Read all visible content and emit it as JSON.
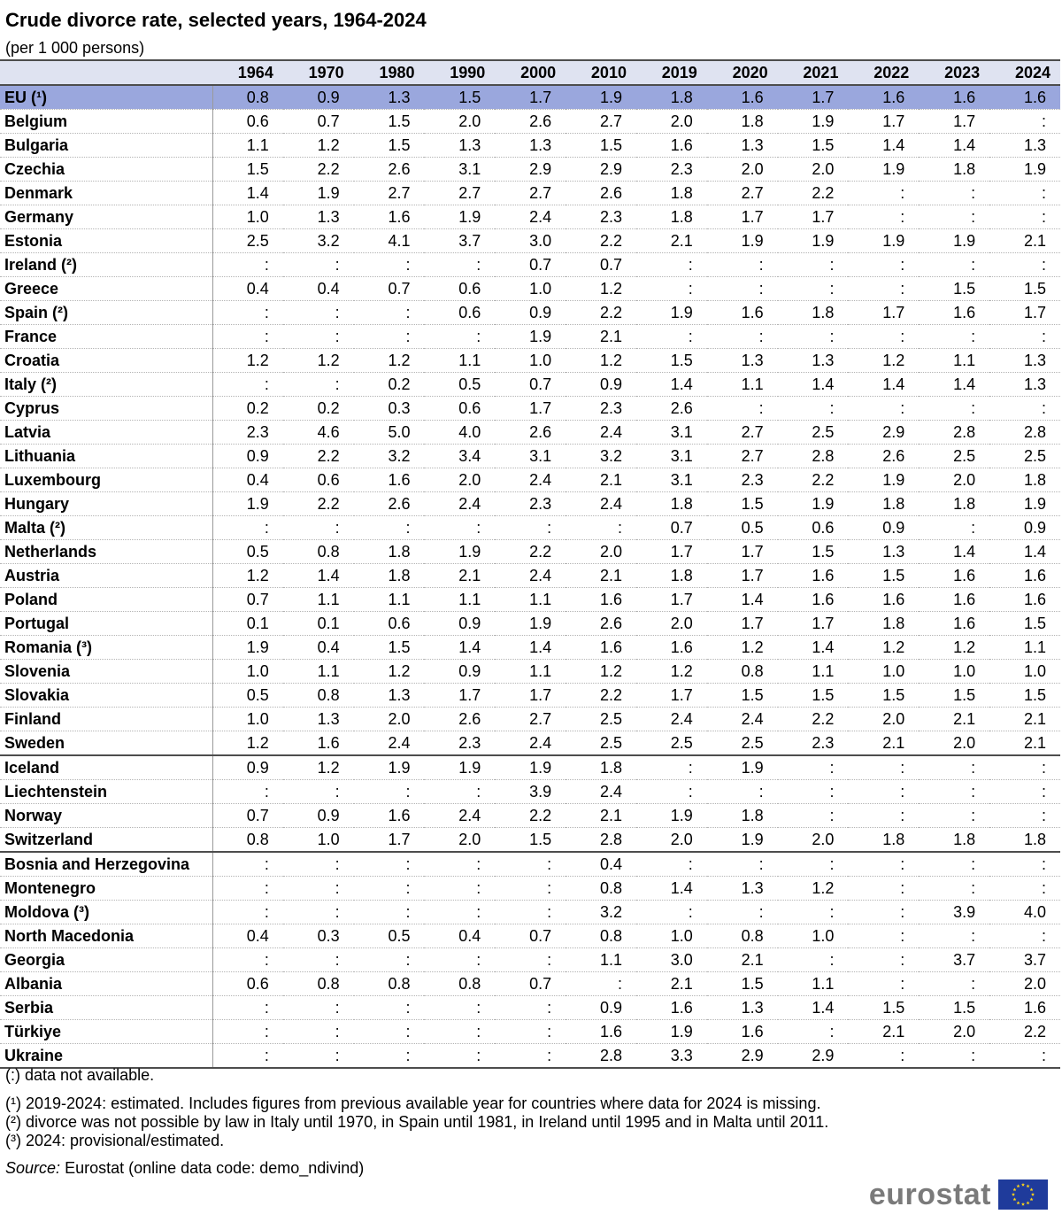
{
  "title": "Crude divorce rate, selected years, 1964-2024",
  "subtitle": "(per 1 000 persons)",
  "chart_data": {
    "type": "table",
    "title": "Crude divorce rate, selected years, 1964-2024",
    "subtitle": "(per 1 000 persons)",
    "columns": [
      "1964",
      "1970",
      "1980",
      "1990",
      "2000",
      "2010",
      "2019",
      "2020",
      "2021",
      "2022",
      "2023",
      "2024"
    ],
    "groups": [
      [
        {
          "name": "EU (¹)",
          "values": [
            "0.8",
            "0.9",
            "1.3",
            "1.5",
            "1.7",
            "1.9",
            "1.8",
            "1.6",
            "1.7",
            "1.6",
            "1.6",
            "1.6"
          ]
        }
      ],
      [
        {
          "name": "Belgium",
          "values": [
            "0.6",
            "0.7",
            "1.5",
            "2.0",
            "2.6",
            "2.7",
            "2.0",
            "1.8",
            "1.9",
            "1.7",
            "1.7",
            ":"
          ]
        },
        {
          "name": "Bulgaria",
          "values": [
            "1.1",
            "1.2",
            "1.5",
            "1.3",
            "1.3",
            "1.5",
            "1.6",
            "1.3",
            "1.5",
            "1.4",
            "1.4",
            "1.3"
          ]
        },
        {
          "name": "Czechia",
          "values": [
            "1.5",
            "2.2",
            "2.6",
            "3.1",
            "2.9",
            "2.9",
            "2.3",
            "2.0",
            "2.0",
            "1.9",
            "1.8",
            "1.9"
          ]
        },
        {
          "name": "Denmark",
          "values": [
            "1.4",
            "1.9",
            "2.7",
            "2.7",
            "2.7",
            "2.6",
            "1.8",
            "2.7",
            "2.2",
            ":",
            ":",
            ":"
          ]
        },
        {
          "name": "Germany",
          "values": [
            "1.0",
            "1.3",
            "1.6",
            "1.9",
            "2.4",
            "2.3",
            "1.8",
            "1.7",
            "1.7",
            ":",
            ":",
            ":"
          ]
        },
        {
          "name": "Estonia",
          "values": [
            "2.5",
            "3.2",
            "4.1",
            "3.7",
            "3.0",
            "2.2",
            "2.1",
            "1.9",
            "1.9",
            "1.9",
            "1.9",
            "2.1"
          ]
        },
        {
          "name": "Ireland (²)",
          "values": [
            ":",
            ":",
            ":",
            ":",
            "0.7",
            "0.7",
            ":",
            ":",
            ":",
            ":",
            ":",
            ":"
          ]
        },
        {
          "name": "Greece",
          "values": [
            "0.4",
            "0.4",
            "0.7",
            "0.6",
            "1.0",
            "1.2",
            ":",
            ":",
            ":",
            ":",
            "1.5",
            "1.5"
          ]
        },
        {
          "name": "Spain (²)",
          "values": [
            ":",
            ":",
            ":",
            "0.6",
            "0.9",
            "2.2",
            "1.9",
            "1.6",
            "1.8",
            "1.7",
            "1.6",
            "1.7"
          ]
        },
        {
          "name": "France",
          "values": [
            ":",
            ":",
            ":",
            ":",
            "1.9",
            "2.1",
            ":",
            ":",
            ":",
            ":",
            ":",
            ":"
          ]
        },
        {
          "name": "Croatia",
          "values": [
            "1.2",
            "1.2",
            "1.2",
            "1.1",
            "1.0",
            "1.2",
            "1.5",
            "1.3",
            "1.3",
            "1.2",
            "1.1",
            "1.3"
          ]
        },
        {
          "name": "Italy (²)",
          "values": [
            ":",
            ":",
            "0.2",
            "0.5",
            "0.7",
            "0.9",
            "1.4",
            "1.1",
            "1.4",
            "1.4",
            "1.4",
            "1.3"
          ]
        },
        {
          "name": "Cyprus",
          "values": [
            "0.2",
            "0.2",
            "0.3",
            "0.6",
            "1.7",
            "2.3",
            "2.6",
            ":",
            ":",
            ":",
            ":",
            ":"
          ]
        },
        {
          "name": "Latvia",
          "values": [
            "2.3",
            "4.6",
            "5.0",
            "4.0",
            "2.6",
            "2.4",
            "3.1",
            "2.7",
            "2.5",
            "2.9",
            "2.8",
            "2.8"
          ]
        },
        {
          "name": "Lithuania",
          "values": [
            "0.9",
            "2.2",
            "3.2",
            "3.4",
            "3.1",
            "3.2",
            "3.1",
            "2.7",
            "2.8",
            "2.6",
            "2.5",
            "2.5"
          ]
        },
        {
          "name": "Luxembourg",
          "values": [
            "0.4",
            "0.6",
            "1.6",
            "2.0",
            "2.4",
            "2.1",
            "3.1",
            "2.3",
            "2.2",
            "1.9",
            "2.0",
            "1.8"
          ]
        },
        {
          "name": "Hungary",
          "values": [
            "1.9",
            "2.2",
            "2.6",
            "2.4",
            "2.3",
            "2.4",
            "1.8",
            "1.5",
            "1.9",
            "1.8",
            "1.8",
            "1.9"
          ]
        },
        {
          "name": "Malta (²)",
          "values": [
            ":",
            ":",
            ":",
            ":",
            ":",
            ":",
            "0.7",
            "0.5",
            "0.6",
            "0.9",
            ":",
            "0.9"
          ]
        },
        {
          "name": "Netherlands",
          "values": [
            "0.5",
            "0.8",
            "1.8",
            "1.9",
            "2.2",
            "2.0",
            "1.7",
            "1.7",
            "1.5",
            "1.3",
            "1.4",
            "1.4"
          ]
        },
        {
          "name": "Austria",
          "values": [
            "1.2",
            "1.4",
            "1.8",
            "2.1",
            "2.4",
            "2.1",
            "1.8",
            "1.7",
            "1.6",
            "1.5",
            "1.6",
            "1.6"
          ]
        },
        {
          "name": "Poland",
          "values": [
            "0.7",
            "1.1",
            "1.1",
            "1.1",
            "1.1",
            "1.6",
            "1.7",
            "1.4",
            "1.6",
            "1.6",
            "1.6",
            "1.6"
          ]
        },
        {
          "name": "Portugal",
          "values": [
            "0.1",
            "0.1",
            "0.6",
            "0.9",
            "1.9",
            "2.6",
            "2.0",
            "1.7",
            "1.7",
            "1.8",
            "1.6",
            "1.5"
          ]
        },
        {
          "name": "Romania (³)",
          "values": [
            "1.9",
            "0.4",
            "1.5",
            "1.4",
            "1.4",
            "1.6",
            "1.6",
            "1.2",
            "1.4",
            "1.2",
            "1.2",
            "1.1"
          ]
        },
        {
          "name": "Slovenia",
          "values": [
            "1.0",
            "1.1",
            "1.2",
            "0.9",
            "1.1",
            "1.2",
            "1.2",
            "0.8",
            "1.1",
            "1.0",
            "1.0",
            "1.0"
          ]
        },
        {
          "name": "Slovakia",
          "values": [
            "0.5",
            "0.8",
            "1.3",
            "1.7",
            "1.7",
            "2.2",
            "1.7",
            "1.5",
            "1.5",
            "1.5",
            "1.5",
            "1.5"
          ]
        },
        {
          "name": "Finland",
          "values": [
            "1.0",
            "1.3",
            "2.0",
            "2.6",
            "2.7",
            "2.5",
            "2.4",
            "2.4",
            "2.2",
            "2.0",
            "2.1",
            "2.1"
          ]
        },
        {
          "name": "Sweden",
          "values": [
            "1.2",
            "1.6",
            "2.4",
            "2.3",
            "2.4",
            "2.5",
            "2.5",
            "2.5",
            "2.3",
            "2.1",
            "2.0",
            "2.1"
          ]
        }
      ],
      [
        {
          "name": "Iceland",
          "values": [
            "0.9",
            "1.2",
            "1.9",
            "1.9",
            "1.9",
            "1.8",
            ":",
            "1.9",
            ":",
            ":",
            ":",
            ":"
          ]
        },
        {
          "name": "Liechtenstein",
          "values": [
            ":",
            ":",
            ":",
            ":",
            "3.9",
            "2.4",
            ":",
            ":",
            ":",
            ":",
            ":",
            ":"
          ]
        },
        {
          "name": "Norway",
          "values": [
            "0.7",
            "0.9",
            "1.6",
            "2.4",
            "2.2",
            "2.1",
            "1.9",
            "1.8",
            ":",
            ":",
            ":",
            ":"
          ]
        },
        {
          "name": "Switzerland",
          "values": [
            "0.8",
            "1.0",
            "1.7",
            "2.0",
            "1.5",
            "2.8",
            "2.0",
            "1.9",
            "2.0",
            "1.8",
            "1.8",
            "1.8"
          ]
        }
      ],
      [
        {
          "name": "Bosnia and Herzegovina",
          "values": [
            ":",
            ":",
            ":",
            ":",
            ":",
            "0.4",
            ":",
            ":",
            ":",
            ":",
            ":",
            ":"
          ]
        },
        {
          "name": "Montenegro",
          "values": [
            ":",
            ":",
            ":",
            ":",
            ":",
            "0.8",
            "1.4",
            "1.3",
            "1.2",
            ":",
            ":",
            ":"
          ]
        },
        {
          "name": "Moldova (³)",
          "values": [
            ":",
            ":",
            ":",
            ":",
            ":",
            "3.2",
            ":",
            ":",
            ":",
            ":",
            "3.9",
            "4.0"
          ]
        },
        {
          "name": "North Macedonia",
          "values": [
            "0.4",
            "0.3",
            "0.5",
            "0.4",
            "0.7",
            "0.8",
            "1.0",
            "0.8",
            "1.0",
            ":",
            ":",
            ":"
          ]
        },
        {
          "name": "Georgia",
          "values": [
            ":",
            ":",
            ":",
            ":",
            ":",
            "1.1",
            "3.0",
            "2.1",
            ":",
            ":",
            "3.7",
            "3.7"
          ]
        },
        {
          "name": "Albania",
          "values": [
            "0.6",
            "0.8",
            "0.8",
            "0.8",
            "0.7",
            ":",
            "2.1",
            "1.5",
            "1.1",
            ":",
            ":",
            "2.0"
          ]
        },
        {
          "name": "Serbia",
          "values": [
            ":",
            ":",
            ":",
            ":",
            ":",
            "0.9",
            "1.6",
            "1.3",
            "1.4",
            "1.5",
            "1.5",
            "1.6"
          ]
        },
        {
          "name": "Türkiye",
          "values": [
            ":",
            ":",
            ":",
            ":",
            ":",
            "1.6",
            "1.9",
            "1.6",
            ":",
            "2.1",
            "2.0",
            "2.2"
          ]
        },
        {
          "name": "Ukraine",
          "values": [
            ":",
            ":",
            ":",
            ":",
            ":",
            "2.8",
            "3.3",
            "2.9",
            "2.9",
            ":",
            ":",
            ":"
          ]
        }
      ]
    ]
  },
  "notes": [
    "(:) data not available.",
    "(¹) 2019-2024: estimated. Includes figures from previous available year for countries where data for 2024 is missing.",
    "(²) divorce was not possible by law in Italy until 1970, in Spain until 1981, in Ireland until 1995 and in Malta until 2011.",
    "(³) 2024: provisional/estimated."
  ],
  "source_label": "Source:",
  "source_text": "Eurostat (online data code: demo_ndivind)",
  "logo_text": "eurostat",
  "colors": {
    "header_bg": "#dfe3f1",
    "highlight_row": "#9aa7dd",
    "logo_blue": "#1f3b9b",
    "logo_star": "#ffd617",
    "logo_text": "#7a7a7a"
  }
}
